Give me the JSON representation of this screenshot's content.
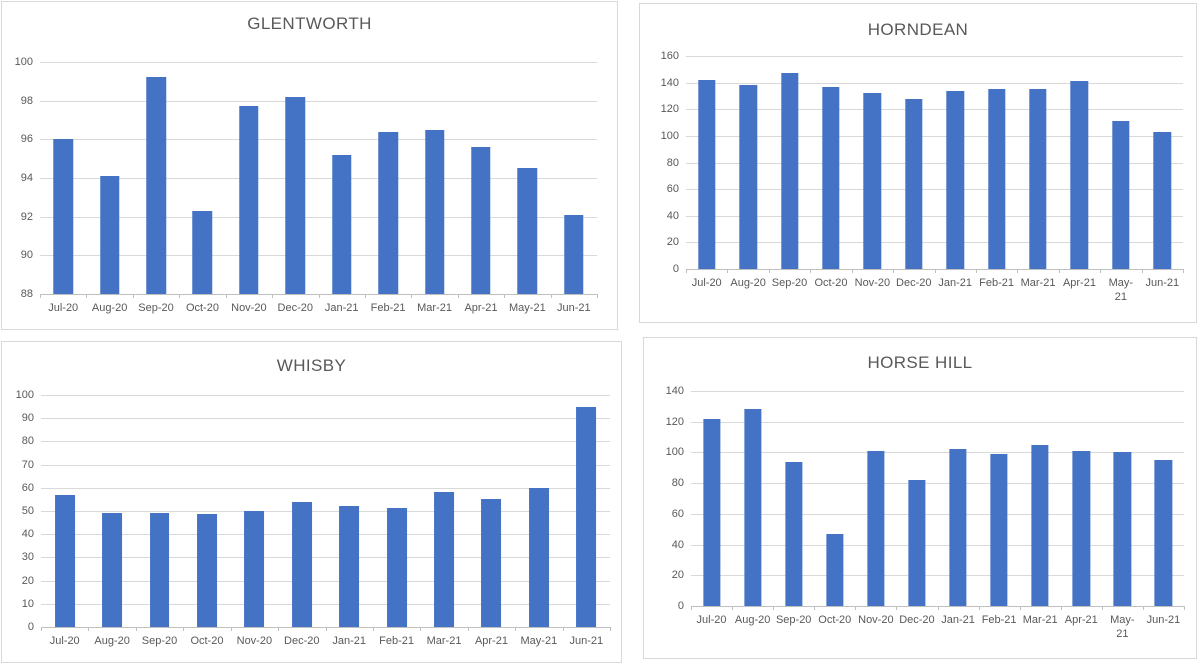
{
  "page": {
    "background_color": "#ffffff"
  },
  "styles": {
    "bar_color": "#4472c4",
    "gridline_color": "#d9d9d9",
    "axis_line_color": "#bfbfbf",
    "tick_label_color": "#595959",
    "title_color": "#595959",
    "panel_border_color": "#d9d9d9"
  },
  "chart_data": [
    {
      "id": "glentworth",
      "type": "bar",
      "title": "GLENTWORTH",
      "categories": [
        "Jul-20",
        "Aug-20",
        "Sep-20",
        "Oct-20",
        "Nov-20",
        "Dec-20",
        "Jan-21",
        "Feb-21",
        "Mar-21",
        "Apr-21",
        "May-21",
        "Jun-21"
      ],
      "x_labels_display": [
        "Jul-20",
        "Aug-20",
        "Sep-20",
        "Oct-20",
        "Nov-20",
        "Dec-20",
        "Jan-21",
        "Feb-21",
        "Mar-21",
        "Apr-21",
        "May-21",
        "Jun-21"
      ],
      "values": [
        96,
        94.1,
        99.2,
        92.3,
        97.7,
        98.2,
        95.2,
        96.4,
        96.5,
        95.6,
        94.5,
        92.1
      ],
      "xlabel": "",
      "ylabel": "",
      "ylim": [
        88,
        100
      ],
      "ytick_step": 2,
      "grid": true,
      "legend": "none"
    },
    {
      "id": "horndean",
      "type": "bar",
      "title": "HORNDEAN",
      "categories": [
        "Jul-20",
        "Aug-20",
        "Sep-20",
        "Oct-20",
        "Nov-20",
        "Dec-20",
        "Jan-21",
        "Feb-21",
        "Mar-21",
        "Apr-21",
        "May-21",
        "Jun-21"
      ],
      "x_labels_display": [
        "Jul-20",
        "Aug-20",
        "Sep-20",
        "Oct-20",
        "Nov-20",
        "Dec-20",
        "Jan-21",
        "Feb-21",
        "Mar-21",
        "Apr-21",
        "May-\n21",
        "Jun-21"
      ],
      "values": [
        142,
        138,
        147,
        137,
        132,
        128,
        134,
        135,
        135,
        141,
        111,
        103
      ],
      "xlabel": "",
      "ylabel": "",
      "ylim": [
        0,
        160
      ],
      "ytick_step": 20,
      "grid": true,
      "legend": "none"
    },
    {
      "id": "whisby",
      "type": "bar",
      "title": "WHISBY",
      "categories": [
        "Jul-20",
        "Aug-20",
        "Sep-20",
        "Oct-20",
        "Nov-20",
        "Dec-20",
        "Jan-21",
        "Feb-21",
        "Mar-21",
        "Apr-21",
        "May-21",
        "Jun-21"
      ],
      "x_labels_display": [
        "Jul-20",
        "Aug-20",
        "Sep-20",
        "Oct-20",
        "Nov-20",
        "Dec-20",
        "Jan-21",
        "Feb-21",
        "Mar-21",
        "Apr-21",
        "May-21",
        "Jun-21"
      ],
      "values": [
        57,
        49,
        49,
        48.5,
        50,
        54,
        52,
        51.5,
        58,
        55,
        60,
        95
      ],
      "xlabel": "",
      "ylabel": "",
      "ylim": [
        0,
        100
      ],
      "ytick_step": 10,
      "grid": true,
      "legend": "none"
    },
    {
      "id": "horse_hill",
      "type": "bar",
      "title": "HORSE HILL",
      "categories": [
        "Jul-20",
        "Aug-20",
        "Sep-20",
        "Oct-20",
        "Nov-20",
        "Dec-20",
        "Jan-21",
        "Feb-21",
        "Mar-21",
        "Apr-21",
        "May-21",
        "Jun-21"
      ],
      "x_labels_display": [
        "Jul-20",
        "Aug-20",
        "Sep-20",
        "Oct-20",
        "Nov-20",
        "Dec-20",
        "Jan-21",
        "Feb-21",
        "Mar-21",
        "Apr-21",
        "May-\n21",
        "Jun-21"
      ],
      "values": [
        122,
        128,
        94,
        47,
        101,
        82,
        102,
        99,
        105,
        101,
        100,
        95
      ],
      "xlabel": "",
      "ylabel": "",
      "ylim": [
        0,
        140
      ],
      "ytick_step": 20,
      "grid": true,
      "legend": "none"
    }
  ]
}
